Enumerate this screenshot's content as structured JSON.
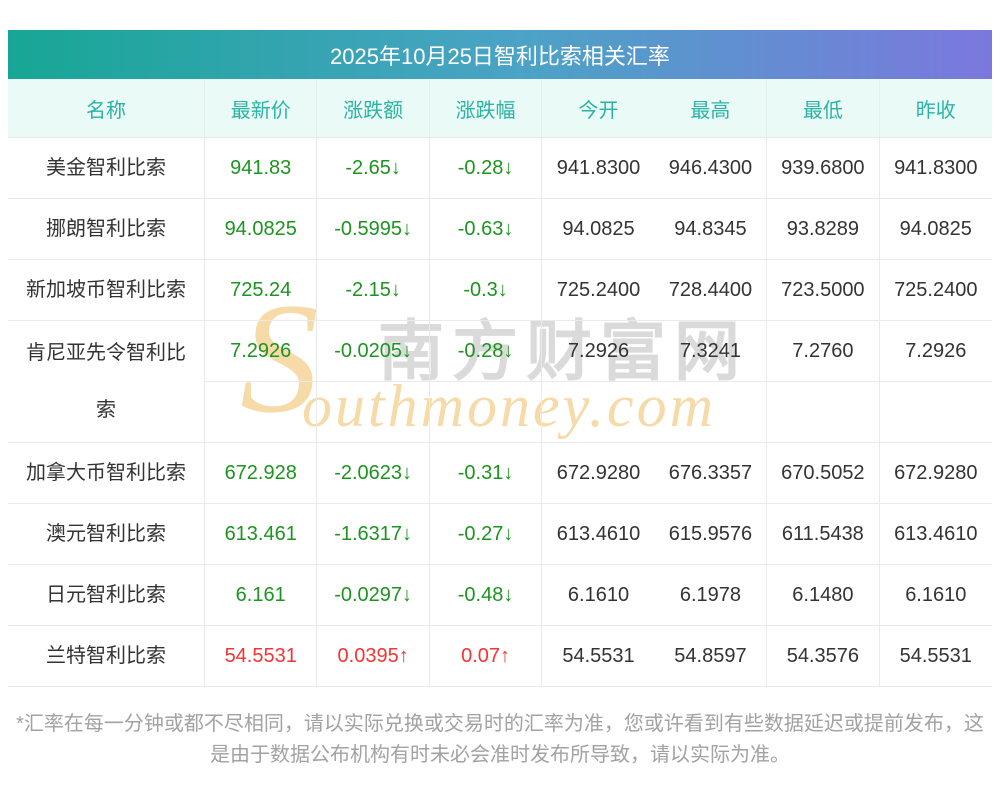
{
  "title": "2025年10月25日智利比索相关汇率",
  "columns": [
    {
      "key": "name",
      "label": "名称"
    },
    {
      "key": "latest",
      "label": "最新价"
    },
    {
      "key": "change",
      "label": "涨跌额"
    },
    {
      "key": "pct",
      "label": "涨跌幅"
    },
    {
      "key": "open",
      "label": "今开"
    },
    {
      "key": "high",
      "label": "最高"
    },
    {
      "key": "low",
      "label": "最低"
    },
    {
      "key": "prev",
      "label": "昨收"
    }
  ],
  "rows": [
    {
      "name": "美金智利比索",
      "latest": "941.83",
      "change": "-2.65↓",
      "pct": "-0.28↓",
      "open": "941.8300",
      "high": "946.4300",
      "low": "939.6800",
      "prev": "941.8300",
      "trend": "down",
      "tall": false
    },
    {
      "name": "挪朗智利比索",
      "latest": "94.0825",
      "change": "-0.5995↓",
      "pct": "-0.63↓",
      "open": "94.0825",
      "high": "94.8345",
      "low": "93.8289",
      "prev": "94.0825",
      "trend": "down",
      "tall": false
    },
    {
      "name": "新加坡币智利比索",
      "latest": "725.24",
      "change": "-2.15↓",
      "pct": "-0.3↓",
      "open": "725.2400",
      "high": "728.4400",
      "low": "723.5000",
      "prev": "725.2400",
      "trend": "down",
      "tall": false
    },
    {
      "name": "肯尼亚先令智利比索",
      "latest": "7.2926",
      "change": "-0.0205↓",
      "pct": "-0.28↓",
      "open": "7.2926",
      "high": "7.3241",
      "low": "7.2760",
      "prev": "7.2926",
      "trend": "down",
      "tall": true
    },
    {
      "name": "加拿大币智利比索",
      "latest": "672.928",
      "change": "-2.0623↓",
      "pct": "-0.31↓",
      "open": "672.9280",
      "high": "676.3357",
      "low": "670.5052",
      "prev": "672.9280",
      "trend": "down",
      "tall": false
    },
    {
      "name": "澳元智利比索",
      "latest": "613.461",
      "change": "-1.6317↓",
      "pct": "-0.27↓",
      "open": "613.4610",
      "high": "615.9576",
      "low": "611.5438",
      "prev": "613.4610",
      "trend": "down",
      "tall": false
    },
    {
      "name": "日元智利比索",
      "latest": "6.161",
      "change": "-0.0297↓",
      "pct": "-0.48↓",
      "open": "6.1610",
      "high": "6.1978",
      "low": "6.1480",
      "prev": "6.1610",
      "trend": "down",
      "tall": false
    },
    {
      "name": "兰特智利比索",
      "latest": "54.5531",
      "change": "0.0395↑",
      "pct": "0.07↑",
      "open": "54.5531",
      "high": "54.8597",
      "low": "54.3576",
      "prev": "54.5531",
      "trend": "up",
      "tall": false
    }
  ],
  "watermark": {
    "s_glyph": "S",
    "script": "outhmoney.com",
    "chinese": "南方财富网"
  },
  "footnote": "*汇率在每一分钟或都不尽相同，请以实际兑换或交易时的汇率为准，您或许看到有些数据延迟或提前发布，这是由于数据公布机构有时未必会准时发布所导致，请以实际为准。",
  "colors": {
    "up": "#f53333",
    "down": "#1d9420",
    "gradient_start": "#17a695",
    "gradient_end": "#7b78dd",
    "header_text": "#2bb3a3",
    "header_bg": "#eafaf7",
    "watermark_orange": "#f6d9a4",
    "watermark_gray": "#c3c3c3"
  },
  "chart_data": {
    "type": "table",
    "title": "2025年10月25日智利比索相关汇率",
    "columns": [
      "名称",
      "最新价",
      "涨跌额",
      "涨跌幅",
      "今开",
      "最高",
      "最低",
      "昨收"
    ],
    "rows": [
      [
        "美金智利比索",
        "941.83",
        "-2.65↓",
        "-0.28↓",
        "941.8300",
        "946.4300",
        "939.6800",
        "941.8300"
      ],
      [
        "挪朗智利比索",
        "94.0825",
        "-0.5995↓",
        "-0.63↓",
        "94.0825",
        "94.8345",
        "93.8289",
        "94.0825"
      ],
      [
        "新加坡币智利比索",
        "725.24",
        "-2.15↓",
        "-0.3↓",
        "725.2400",
        "728.4400",
        "723.5000",
        "725.2400"
      ],
      [
        "肯尼亚先令智利比索",
        "7.2926",
        "-0.0205↓",
        "-0.28↓",
        "7.2926",
        "7.3241",
        "7.2760",
        "7.2926"
      ],
      [
        "加拿大币智利比索",
        "672.928",
        "-2.0623↓",
        "-0.31↓",
        "672.9280",
        "676.3357",
        "670.5052",
        "672.9280"
      ],
      [
        "澳元智利比索",
        "613.461",
        "-1.6317↓",
        "-0.27↓",
        "613.4610",
        "615.9576",
        "611.5438",
        "613.4610"
      ],
      [
        "日元智利比索",
        "6.161",
        "-0.0297↓",
        "-0.48↓",
        "6.1610",
        "6.1978",
        "6.1480",
        "6.1610"
      ],
      [
        "兰特智利比索",
        "54.5531",
        "0.0395↑",
        "0.07↑",
        "54.5531",
        "54.8597",
        "54.3576",
        "54.5531"
      ]
    ]
  }
}
